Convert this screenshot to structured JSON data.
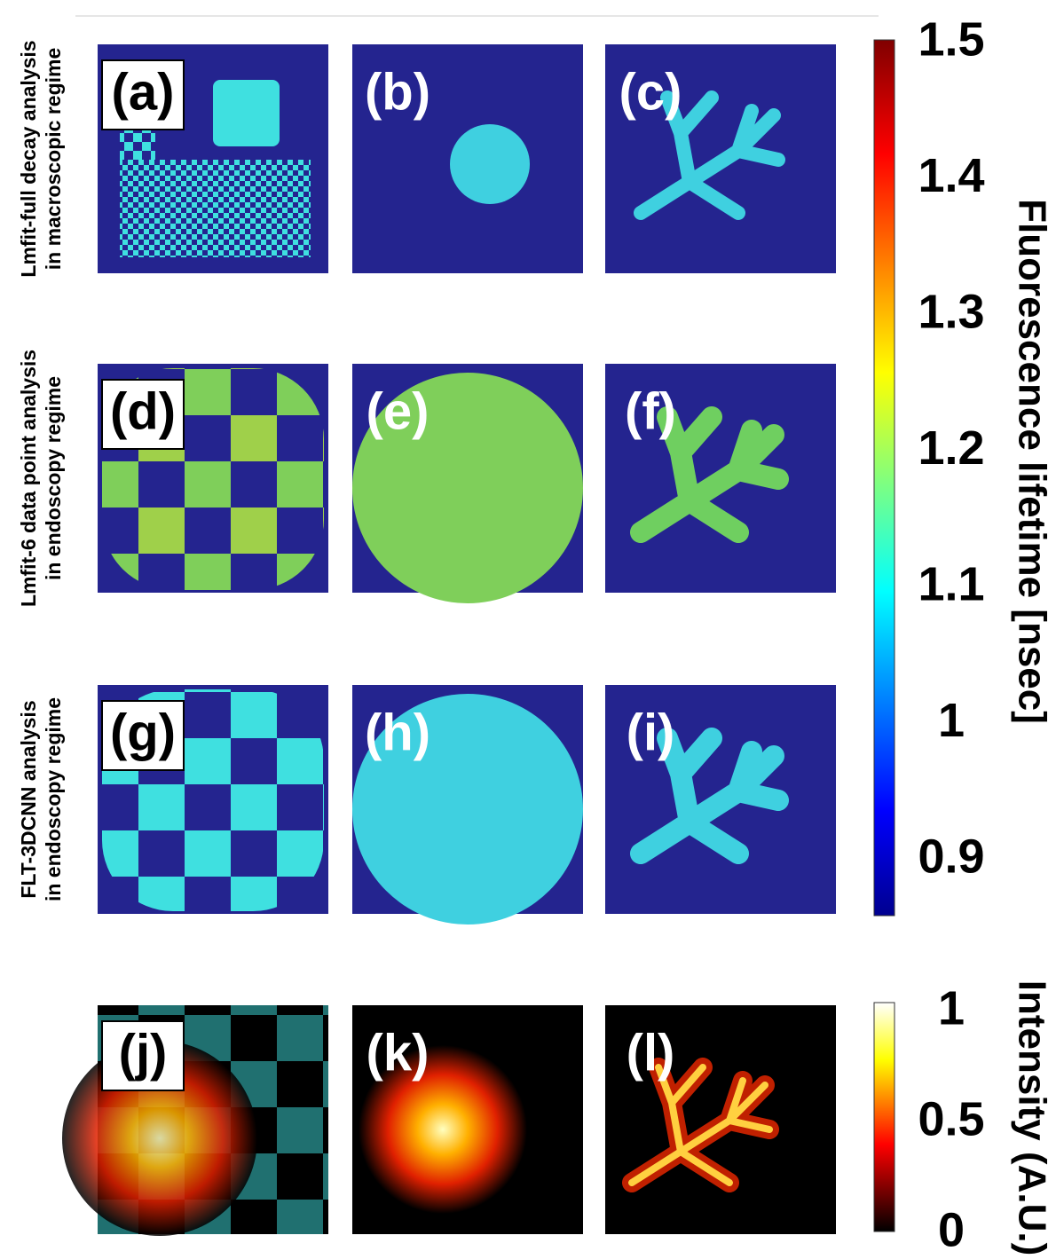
{
  "row_labels": [
    [
      "Lmfit-full decay analysis",
      "in macroscopic regime"
    ],
    [
      "Lmfit-6 data point analysis",
      "in endoscopy regime"
    ],
    [
      "FLT-3DCNN analysis",
      "in endoscopy regime"
    ]
  ],
  "panels": [
    "(a)",
    "(b)",
    "(c)",
    "(d)",
    "(e)",
    "(f)",
    "(g)",
    "(h)",
    "(i)",
    "(j)",
    "(k)",
    "(l)"
  ],
  "colorbars": [
    {
      "title": "Fluorescence lifetime [nsec]",
      "ticks": [
        0.9,
        1,
        1.1,
        1.2,
        1.3,
        1.4,
        1.5
      ]
    },
    {
      "title": "Intensity (A.U.)",
      "ticks": [
        0,
        0.5,
        1
      ]
    }
  ]
}
